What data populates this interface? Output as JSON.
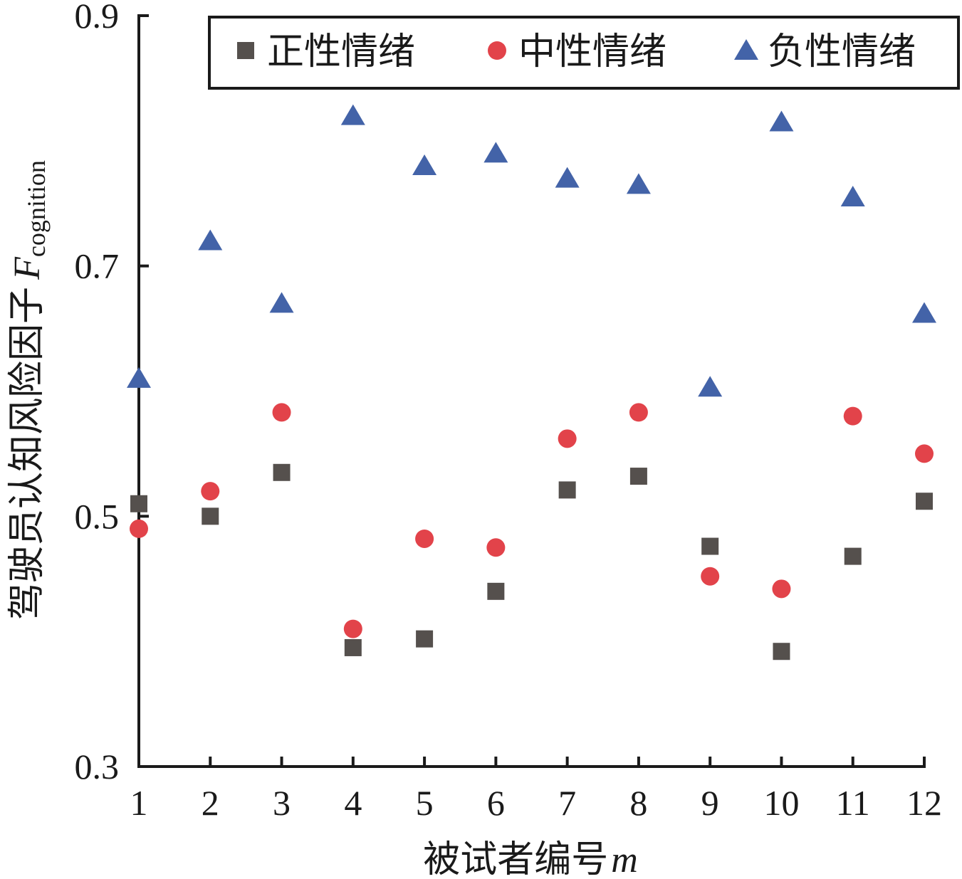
{
  "chart_data": {
    "type": "scatter",
    "title": "",
    "xlabel": "被试者编号",
    "xlabel_var": "m",
    "ylabel": "驾驶员认知风险因子",
    "ylabel_var": "F",
    "ylabel_sub": "cognition",
    "x": [
      1,
      2,
      3,
      4,
      5,
      6,
      7,
      8,
      9,
      10,
      11,
      12
    ],
    "xlim": [
      1,
      12
    ],
    "ylim": [
      0.3,
      0.9
    ],
    "yticks": [
      "0.3",
      "0.5",
      "0.7",
      "0.9"
    ],
    "xticks": [
      "1",
      "2",
      "3",
      "4",
      "5",
      "6",
      "7",
      "8",
      "9",
      "10",
      "11",
      "12"
    ],
    "legend_position": "top-right",
    "series": [
      {
        "name": "正性情绪",
        "marker": "square",
        "color": "#55504d",
        "values": [
          0.51,
          0.5,
          0.535,
          0.395,
          0.402,
          0.44,
          0.521,
          0.532,
          0.476,
          0.392,
          0.468,
          0.512
        ]
      },
      {
        "name": "中性情绪",
        "marker": "circle",
        "color": "#e2434a",
        "values": [
          0.49,
          0.52,
          0.583,
          0.41,
          0.482,
          0.475,
          0.562,
          0.583,
          0.452,
          0.442,
          0.58,
          0.55
        ]
      },
      {
        "name": "负性情绪",
        "marker": "triangle",
        "color": "#4363a8",
        "values": [
          0.61,
          0.72,
          0.67,
          0.82,
          0.78,
          0.79,
          0.77,
          0.765,
          0.603,
          0.815,
          0.755,
          0.662
        ]
      }
    ]
  }
}
